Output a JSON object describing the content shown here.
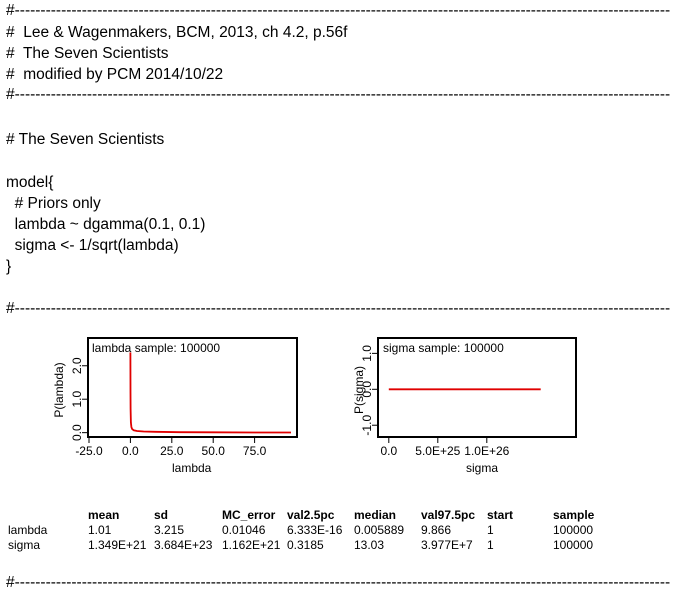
{
  "header": {
    "rule": "#-------------------------------------------------------------------------------------------------------------------------------",
    "lines": [
      "#  Lee & Wagenmakers, BCM, 2013, ch 4.2, p.56f",
      "#  The Seven Scientists",
      "#  modified by PCM 2014/10/22"
    ]
  },
  "section_title": "# The Seven Scientists",
  "model": {
    "lines": [
      "model{",
      "  # Priors only",
      "  lambda ~ dgamma(0.1, 0.1)",
      "  sigma <- 1/sqrt(lambda)",
      "}"
    ]
  },
  "chart_data": [
    {
      "type": "line",
      "title": "lambda sample: 100000",
      "xlabel": "lambda",
      "ylabel": "P(lambda)",
      "xticks": [
        "-25.0",
        "0.0",
        "25.0",
        "50.0",
        "75.0"
      ],
      "yticks": [
        "0.0",
        "1.0",
        "2.0"
      ],
      "xlim": [
        -25,
        100
      ],
      "ylim": [
        -0.1,
        2.8
      ],
      "series": [
        {
          "color": "#e00000",
          "x": [
            0,
            0.05,
            0.1,
            0.3,
            0.6,
            1,
            2,
            4,
            8,
            15,
            30,
            50,
            75,
            97
          ],
          "y": [
            2.4,
            1.2,
            0.7,
            0.3,
            0.17,
            0.11,
            0.07,
            0.05,
            0.035,
            0.025,
            0.015,
            0.01,
            0.006,
            0.004
          ]
        }
      ]
    },
    {
      "type": "line",
      "title": "sigma sample: 100000",
      "xlabel": "sigma",
      "ylabel": "P(sigma)",
      "xticks": [
        "0.0",
        "5.0E+25",
        "1.0E+26"
      ],
      "yticks": [
        "-1.0",
        "0.0",
        "1.0"
      ],
      "xlim": [
        -1e+25,
        1.9e+26
      ],
      "ylim": [
        -1.3,
        1.4
      ],
      "series": [
        {
          "color": "#e00000",
          "x": [
            0,
            1.55e+26
          ],
          "y": [
            0,
            0
          ]
        }
      ]
    }
  ],
  "stats": {
    "columns": [
      "mean",
      "sd",
      "MC_error",
      "val2.5pc",
      "median",
      "val97.5pc",
      "start",
      "sample"
    ],
    "rows": [
      {
        "node": "lambda",
        "values": [
          "1.01",
          "3.215",
          "0.01046",
          "6.333E-16",
          "0.005889",
          "9.866",
          "1",
          "100000"
        ]
      },
      {
        "node": "sigma",
        "values": [
          "1.349E+21",
          "3.684E+23",
          "1.162E+21",
          "0.3185",
          "13.03",
          "3.977E+7",
          "1",
          "100000"
        ]
      }
    ]
  }
}
